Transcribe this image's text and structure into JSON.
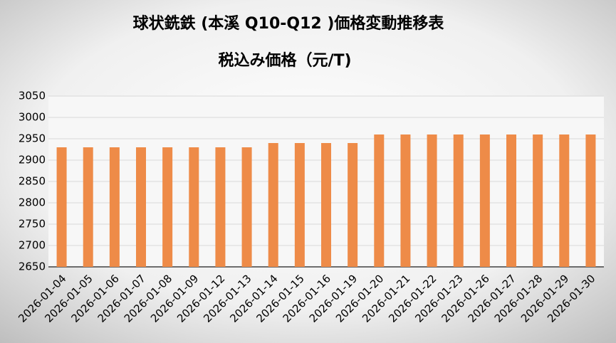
{
  "chart_data": {
    "type": "bar",
    "title": "球状銑鉄 (本溪 Q10-Q12 )価格変動推移表",
    "subtitle": "税込み価格（元/T)",
    "categories": [
      "2026-01-04",
      "2026-01-05",
      "2026-01-06",
      "2026-01-07",
      "2026-01-08",
      "2026-01-09",
      "2026-01-12",
      "2026-01-13",
      "2026-01-14",
      "2026-01-15",
      "2026-01-16",
      "2026-01-19",
      "2026-01-20",
      "2026-01-21",
      "2026-01-22",
      "2026-01-23",
      "2026-01-26",
      "2026-01-27",
      "2026-01-28",
      "2026-01-29",
      "2026-01-30"
    ],
    "values": [
      2930,
      2930,
      2930,
      2930,
      2930,
      2930,
      2930,
      2930,
      2940,
      2940,
      2940,
      2940,
      2960,
      2960,
      2960,
      2960,
      2960,
      2960,
      2960,
      2960,
      2960
    ],
    "color": "#ee8b48",
    "ylim": [
      2650,
      3050
    ],
    "yticks": [
      2650,
      2700,
      2750,
      2800,
      2850,
      2900,
      2950,
      3000,
      3050
    ],
    "grid": true
  }
}
